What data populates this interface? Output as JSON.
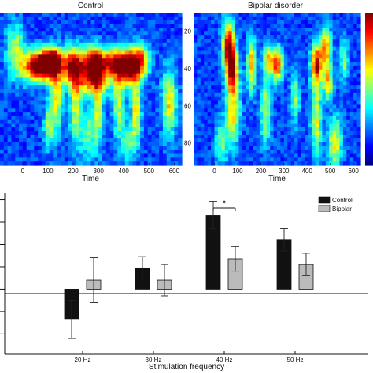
{
  "chart_data": [
    {
      "type": "heatmap",
      "title": "Control",
      "xlabel": "Time",
      "x_ticks": [
        "0",
        "100",
        "200",
        "300",
        "400",
        "500",
        "600"
      ],
      "xlim": [
        -90,
        630
      ],
      "ylim": [
        10,
        92
      ],
      "y_ticks": [
        "20",
        "40",
        "60",
        "80"
      ],
      "colormap": "jet",
      "hotspots": [
        {
          "x": 45,
          "y": 39,
          "sx": 38,
          "sy": 6,
          "v": 0.68
        },
        {
          "x": 95,
          "y": 38,
          "sx": 28,
          "sy": 5,
          "v": 0.85
        },
        {
          "x": 120,
          "y": 36,
          "sx": 18,
          "sy": 4,
          "v": 0.55
        },
        {
          "x": 190,
          "y": 38,
          "sx": 35,
          "sy": 6,
          "v": 0.72
        },
        {
          "x": 285,
          "y": 38,
          "sx": 34,
          "sy": 6,
          "v": 0.97
        },
        {
          "x": 360,
          "y": 37,
          "sx": 25,
          "sy": 5,
          "v": 0.62
        },
        {
          "x": 420,
          "y": 39,
          "sx": 28,
          "sy": 6,
          "v": 1.0
        },
        {
          "x": 470,
          "y": 36,
          "sx": 24,
          "sy": 6,
          "v": 0.55
        },
        {
          "x": -30,
          "y": 30,
          "sx": 25,
          "sy": 10,
          "v": 0.35
        },
        {
          "x": 270,
          "y": 48,
          "sx": 60,
          "sy": 5,
          "v": 0.4
        },
        {
          "x": 130,
          "y": 55,
          "sx": 18,
          "sy": 14,
          "v": 0.42
        },
        {
          "x": 210,
          "y": 60,
          "sx": 16,
          "sy": 16,
          "v": 0.38
        },
        {
          "x": 300,
          "y": 62,
          "sx": 14,
          "sy": 14,
          "v": 0.4
        },
        {
          "x": 380,
          "y": 58,
          "sx": 16,
          "sy": 14,
          "v": 0.36
        },
        {
          "x": 450,
          "y": 62,
          "sx": 14,
          "sy": 12,
          "v": 0.45
        },
        {
          "x": 580,
          "y": 58,
          "sx": 20,
          "sy": 12,
          "v": 0.48
        },
        {
          "x": 100,
          "y": 72,
          "sx": 14,
          "sy": 8,
          "v": 0.3
        },
        {
          "x": 260,
          "y": 75,
          "sx": 20,
          "sy": 10,
          "v": 0.3
        },
        {
          "x": 420,
          "y": 80,
          "sx": 20,
          "sy": 8,
          "v": 0.25
        }
      ]
    },
    {
      "type": "heatmap",
      "title": "Bipolar disorder",
      "xlabel": "Time",
      "x_ticks": [
        "0",
        "100",
        "200",
        "300",
        "400",
        "500",
        "600"
      ],
      "xlim": [
        -90,
        630
      ],
      "ylim": [
        10,
        92
      ],
      "colormap": "jet",
      "hotspots": [
        {
          "x": 60,
          "y": 28,
          "sx": 18,
          "sy": 10,
          "v": 0.72
        },
        {
          "x": 80,
          "y": 40,
          "sx": 16,
          "sy": 8,
          "v": 0.62
        },
        {
          "x": 160,
          "y": 38,
          "sx": 14,
          "sy": 10,
          "v": 0.5
        },
        {
          "x": 270,
          "y": 38,
          "sx": 18,
          "sy": 6,
          "v": 0.7
        },
        {
          "x": 230,
          "y": 35,
          "sx": 14,
          "sy": 5,
          "v": 0.42
        },
        {
          "x": 440,
          "y": 38,
          "sx": 16,
          "sy": 8,
          "v": 0.72
        },
        {
          "x": 480,
          "y": 30,
          "sx": 16,
          "sy": 8,
          "v": 0.55
        },
        {
          "x": 490,
          "y": 48,
          "sx": 14,
          "sy": 6,
          "v": 0.48
        },
        {
          "x": 560,
          "y": 36,
          "sx": 14,
          "sy": 8,
          "v": 0.32
        },
        {
          "x": 80,
          "y": 62,
          "sx": 22,
          "sy": 14,
          "v": 0.45
        },
        {
          "x": 220,
          "y": 62,
          "sx": 16,
          "sy": 14,
          "v": 0.36
        },
        {
          "x": 350,
          "y": 55,
          "sx": 14,
          "sy": 10,
          "v": 0.32
        },
        {
          "x": 440,
          "y": 68,
          "sx": 16,
          "sy": 14,
          "v": 0.4
        },
        {
          "x": 520,
          "y": 80,
          "sx": 22,
          "sy": 10,
          "v": 0.42
        },
        {
          "x": 30,
          "y": 80,
          "sx": 20,
          "sy": 8,
          "v": 0.28
        }
      ]
    },
    {
      "type": "bar",
      "xlabel": "Stimulation frequency",
      "categories": [
        "20 Hz",
        "30 Hz",
        "40 Hz",
        "50 Hz"
      ],
      "series": [
        {
          "name": "Control",
          "color": "#111111",
          "values": [
            -1.35,
            0.95,
            3.3,
            2.2
          ],
          "errors": [
            0.85,
            0.5,
            0.6,
            0.5
          ]
        },
        {
          "name": "Bipolar",
          "color": "#bbbbbb",
          "values": [
            0.4,
            0.4,
            1.35,
            1.1
          ],
          "errors": [
            1.0,
            0.7,
            0.55,
            0.5
          ]
        }
      ],
      "ylim": [
        -2.9,
        4.3
      ],
      "legend": "top-right",
      "annotation": {
        "text": "*",
        "between": [
          [
            2,
            0
          ],
          [
            2,
            1
          ]
        ]
      }
    }
  ]
}
